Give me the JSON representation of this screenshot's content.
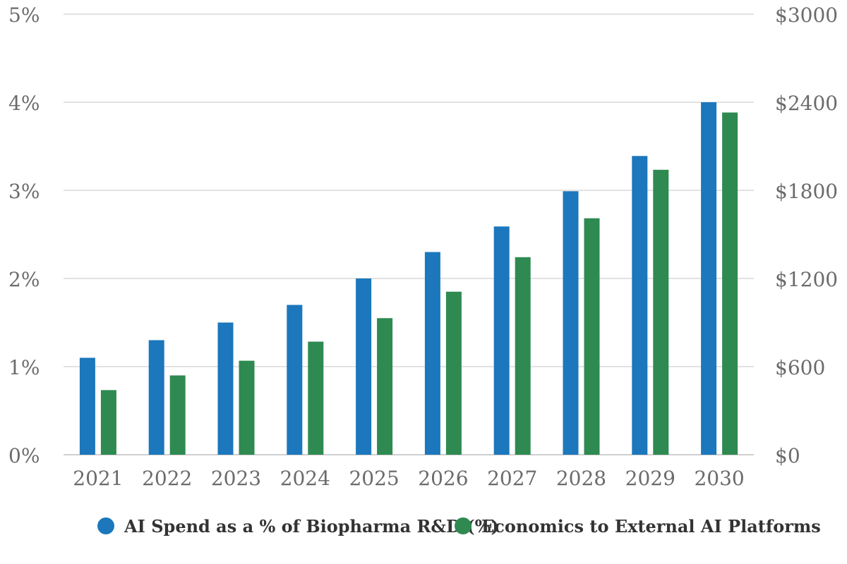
{
  "chart_data": {
    "type": "bar",
    "categories": [
      "2021",
      "2022",
      "2023",
      "2024",
      "2025",
      "2026",
      "2027",
      "2028",
      "2029",
      "2030"
    ],
    "series": [
      {
        "name": "AI Spend as a % of Biopharma R&D (%)",
        "axis": "left",
        "color": "#1c77bc",
        "values": [
          1.1,
          1.3,
          1.5,
          1.7,
          2.0,
          2.3,
          2.59,
          2.99,
          3.39,
          4.0
        ]
      },
      {
        "name": "Economics to External AI Platforms",
        "axis": "right",
        "color": "#2e8a51",
        "values": [
          440,
          540,
          640,
          770,
          930,
          1110,
          1345,
          1610,
          1940,
          2330
        ]
      }
    ],
    "y_left": {
      "ylim": [
        0,
        5
      ],
      "ticks": [
        "0%",
        "1%",
        "2%",
        "3%",
        "4%",
        "5%"
      ]
    },
    "y_right": {
      "ylim": [
        0,
        3000
      ],
      "ticks": [
        "$0",
        "$600",
        "$1200",
        "$1800",
        "$2400",
        "$3000"
      ]
    },
    "grid": true,
    "legend_position": "bottom"
  }
}
